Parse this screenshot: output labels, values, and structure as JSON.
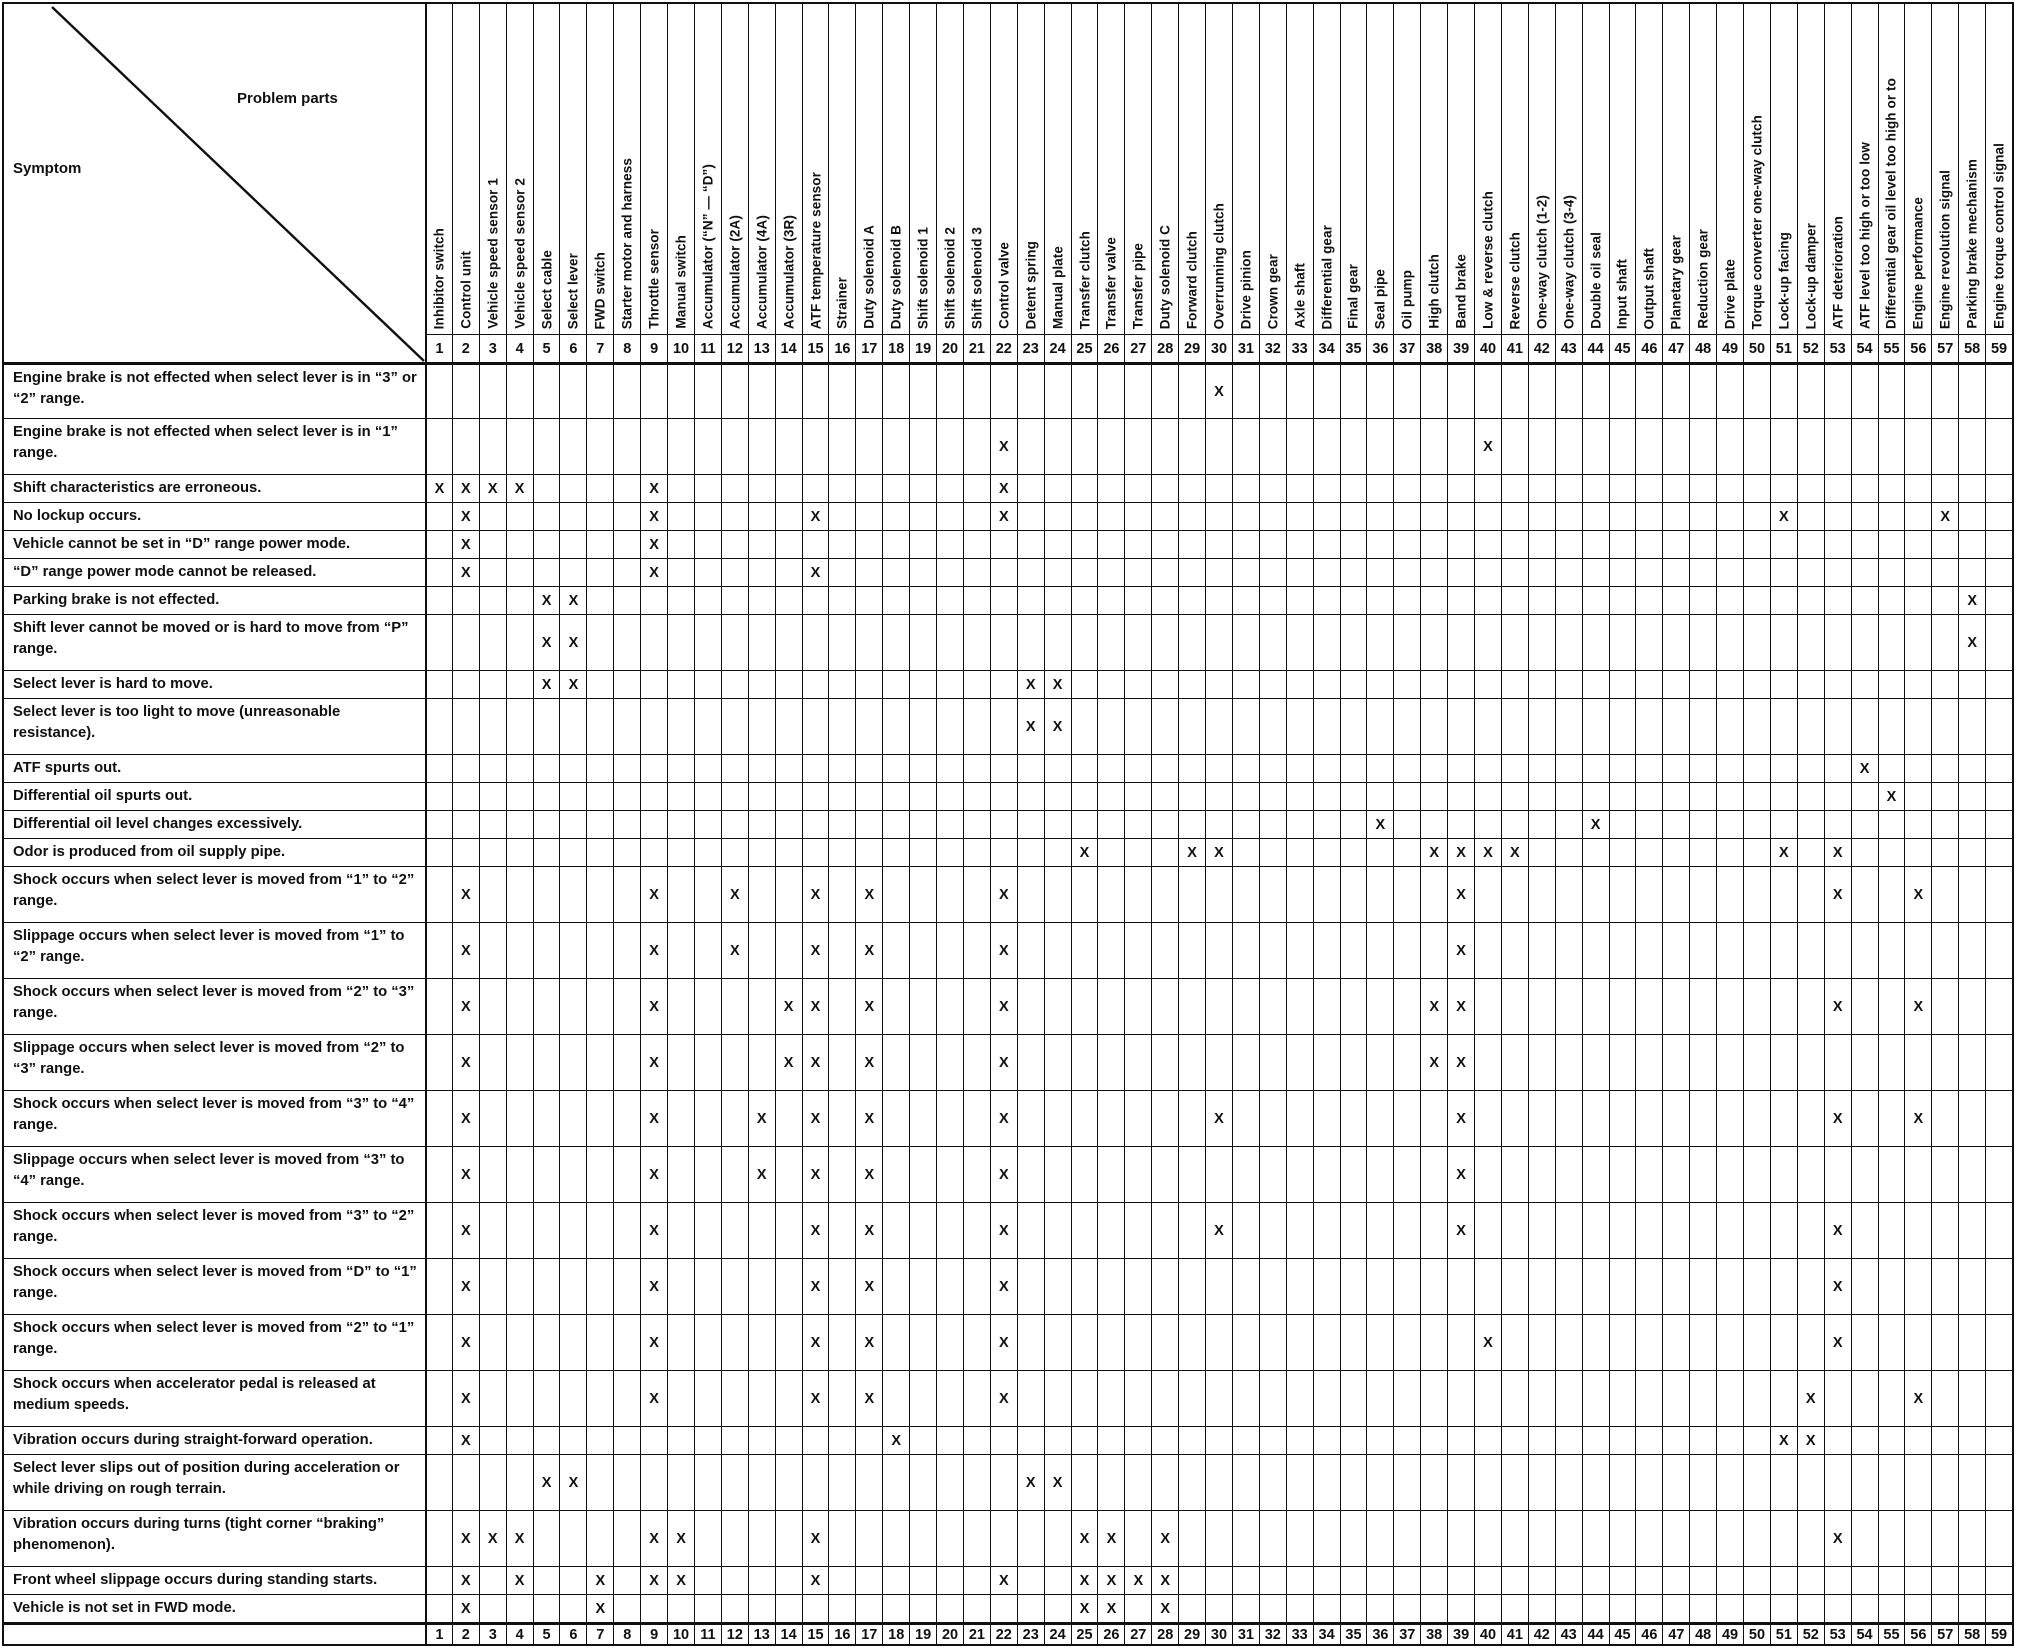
{
  "page": {
    "corner_top_label": "Problem parts",
    "corner_bottom_label": "Symptom"
  },
  "colors": {
    "ink": "#101010",
    "paper": "#ffffff"
  },
  "matrix": {
    "mark_glyph": "X",
    "columns": [
      {
        "n": 1,
        "label": "Inhibitor switch"
      },
      {
        "n": 2,
        "label": "Control unit"
      },
      {
        "n": 3,
        "label": "Vehicle speed sensor 1"
      },
      {
        "n": 4,
        "label": "Vehicle speed sensor 2"
      },
      {
        "n": 5,
        "label": "Select cable"
      },
      {
        "n": 6,
        "label": "Select lever"
      },
      {
        "n": 7,
        "label": "FWD switch"
      },
      {
        "n": 8,
        "label": "Starter motor and harness"
      },
      {
        "n": 9,
        "label": "Throttle sensor"
      },
      {
        "n": 10,
        "label": "Manual switch"
      },
      {
        "n": 11,
        "label": "Accumulator (“N” — “D”)"
      },
      {
        "n": 12,
        "label": "Accumulator (2A)"
      },
      {
        "n": 13,
        "label": "Accumulator (4A)"
      },
      {
        "n": 14,
        "label": "Accumulator (3R)"
      },
      {
        "n": 15,
        "label": "ATF temperature sensor"
      },
      {
        "n": 16,
        "label": "Strainer"
      },
      {
        "n": 17,
        "label": "Duty solenoid A"
      },
      {
        "n": 18,
        "label": "Duty solenoid B"
      },
      {
        "n": 19,
        "label": "Shift solenoid 1"
      },
      {
        "n": 20,
        "label": "Shift solenoid 2"
      },
      {
        "n": 21,
        "label": "Shift solenoid 3"
      },
      {
        "n": 22,
        "label": "Control valve"
      },
      {
        "n": 23,
        "label": "Detent spring"
      },
      {
        "n": 24,
        "label": "Manual plate"
      },
      {
        "n": 25,
        "label": "Transfer clutch"
      },
      {
        "n": 26,
        "label": "Transfer valve"
      },
      {
        "n": 27,
        "label": "Transfer pipe"
      },
      {
        "n": 28,
        "label": "Duty solenoid C"
      },
      {
        "n": 29,
        "label": "Forward clutch"
      },
      {
        "n": 30,
        "label": "Overrunning clutch"
      },
      {
        "n": 31,
        "label": "Drive pinion"
      },
      {
        "n": 32,
        "label": "Crown gear"
      },
      {
        "n": 33,
        "label": "Axle shaft"
      },
      {
        "n": 34,
        "label": "Differential gear"
      },
      {
        "n": 35,
        "label": "Final gear"
      },
      {
        "n": 36,
        "label": "Seal pipe"
      },
      {
        "n": 37,
        "label": "Oil pump"
      },
      {
        "n": 38,
        "label": "High clutch"
      },
      {
        "n": 39,
        "label": "Band brake"
      },
      {
        "n": 40,
        "label": "Low & reverse clutch"
      },
      {
        "n": 41,
        "label": "Reverse clutch"
      },
      {
        "n": 42,
        "label": "One-way clutch (1-2)"
      },
      {
        "n": 43,
        "label": "One-way clutch (3-4)"
      },
      {
        "n": 44,
        "label": "Double oil seal"
      },
      {
        "n": 45,
        "label": "Input shaft"
      },
      {
        "n": 46,
        "label": "Output shaft"
      },
      {
        "n": 47,
        "label": "Planetary gear"
      },
      {
        "n": 48,
        "label": "Reduction gear"
      },
      {
        "n": 49,
        "label": "Drive plate"
      },
      {
        "n": 50,
        "label": "Torque converter one-way clutch"
      },
      {
        "n": 51,
        "label": "Lock-up facing"
      },
      {
        "n": 52,
        "label": "Lock-up damper"
      },
      {
        "n": 53,
        "label": "ATF deterioration"
      },
      {
        "n": 54,
        "label": "ATF level too high or too low"
      },
      {
        "n": 55,
        "label": "Differential gear oil level too high or to"
      },
      {
        "n": 56,
        "label": "Engine performance"
      },
      {
        "n": 57,
        "label": "Engine revolution signal"
      },
      {
        "n": 58,
        "label": "Parking brake mechanism"
      },
      {
        "n": 59,
        "label": "Engine torque control signal"
      }
    ],
    "rows": [
      {
        "symptom": "Engine brake is not effected when select lever is in “3” or “2” range.",
        "lines": 2,
        "marks": [
          30
        ]
      },
      {
        "symptom": "Engine brake is not effected when select lever is in “1” range.",
        "lines": 2,
        "marks": [
          22,
          40
        ]
      },
      {
        "symptom": "Shift characteristics are erroneous.",
        "lines": 1,
        "marks": [
          1,
          2,
          3,
          4,
          9,
          22
        ]
      },
      {
        "symptom": "No lockup occurs.",
        "lines": 1,
        "marks": [
          2,
          9,
          15,
          22,
          51,
          57
        ]
      },
      {
        "symptom": "Vehicle cannot be set in “D” range power mode.",
        "lines": 1,
        "marks": [
          2,
          9
        ]
      },
      {
        "symptom": "“D” range power mode cannot be released.",
        "lines": 1,
        "marks": [
          2,
          9,
          15
        ]
      },
      {
        "symptom": "Parking brake is not effected.",
        "lines": 1,
        "marks": [
          5,
          6,
          58
        ]
      },
      {
        "symptom": "Shift lever cannot be moved or is hard to move from “P” range.",
        "lines": 2,
        "marks": [
          5,
          6,
          58
        ]
      },
      {
        "symptom": "Select lever is hard to move.",
        "lines": 1,
        "marks": [
          5,
          6,
          23,
          24
        ]
      },
      {
        "symptom": "Select lever is too light to move (unreasonable resistance).",
        "lines": 2,
        "marks": [
          23,
          24
        ]
      },
      {
        "symptom": "ATF spurts out.",
        "lines": 1,
        "marks": [
          54
        ]
      },
      {
        "symptom": "Differential oil spurts out.",
        "lines": 1,
        "marks": [
          55
        ]
      },
      {
        "symptom": "Differential oil level changes excessively.",
        "lines": 1,
        "marks": [
          36,
          44
        ]
      },
      {
        "symptom": "Odor is produced from oil supply pipe.",
        "lines": 1,
        "marks": [
          25,
          29,
          30,
          38,
          39,
          40,
          41,
          51,
          53
        ]
      },
      {
        "symptom": "Shock occurs when select lever is moved from “1” to “2” range.",
        "lines": 2,
        "marks": [
          2,
          9,
          12,
          15,
          17,
          22,
          39,
          53,
          56
        ]
      },
      {
        "symptom": "Slippage occurs when select lever is moved from “1” to “2” range.",
        "lines": 2,
        "marks": [
          2,
          9,
          12,
          15,
          17,
          22,
          39
        ]
      },
      {
        "symptom": "Shock occurs when select lever is moved from “2” to “3” range.",
        "lines": 2,
        "marks": [
          2,
          9,
          14,
          15,
          17,
          22,
          38,
          39,
          53,
          56
        ]
      },
      {
        "symptom": "Slippage occurs when select lever is moved from “2” to “3” range.",
        "lines": 2,
        "marks": [
          2,
          9,
          14,
          15,
          17,
          22,
          38,
          39
        ]
      },
      {
        "symptom": "Shock occurs when select lever is moved from “3” to “4” range.",
        "lines": 2,
        "marks": [
          2,
          9,
          13,
          15,
          17,
          22,
          30,
          39,
          53,
          56
        ]
      },
      {
        "symptom": "Slippage occurs when select lever is moved from “3” to “4” range.",
        "lines": 2,
        "marks": [
          2,
          9,
          13,
          15,
          17,
          22,
          39
        ]
      },
      {
        "symptom": "Shock occurs when select lever is moved from “3” to “2” range.",
        "lines": 2,
        "marks": [
          2,
          9,
          15,
          17,
          22,
          30,
          39,
          53
        ]
      },
      {
        "symptom": "Shock occurs when select lever is moved from “D” to “1” range.",
        "lines": 2,
        "marks": [
          2,
          9,
          15,
          17,
          22,
          53
        ]
      },
      {
        "symptom": "Shock occurs when select lever is moved from “2” to “1” range.",
        "lines": 2,
        "marks": [
          2,
          9,
          15,
          17,
          22,
          40,
          53
        ]
      },
      {
        "symptom": "Shock occurs when accelerator pedal is released at medium speeds.",
        "lines": 2,
        "marks": [
          2,
          9,
          15,
          17,
          22,
          52,
          56
        ]
      },
      {
        "symptom": "Vibration occurs during straight-forward operation.",
        "lines": 1,
        "marks": [
          2,
          18,
          51,
          52
        ]
      },
      {
        "symptom": "Select lever slips out of position during acceleration or while driving on rough terrain.",
        "lines": 2,
        "marks": [
          5,
          6,
          23,
          24
        ]
      },
      {
        "symptom": "Vibration occurs during turns (tight corner “braking” phenomenon).",
        "lines": 2,
        "marks": [
          2,
          3,
          4,
          9,
          10,
          15,
          25,
          26,
          28,
          53
        ]
      },
      {
        "symptom": "Front wheel slippage occurs during standing starts.",
        "lines": 1,
        "marks": [
          2,
          4,
          7,
          9,
          10,
          15,
          22,
          25,
          26,
          27,
          28
        ]
      },
      {
        "symptom": "Vehicle is not set in FWD mode.",
        "lines": 1,
        "marks": [
          2,
          7,
          25,
          26,
          28
        ]
      }
    ]
  }
}
